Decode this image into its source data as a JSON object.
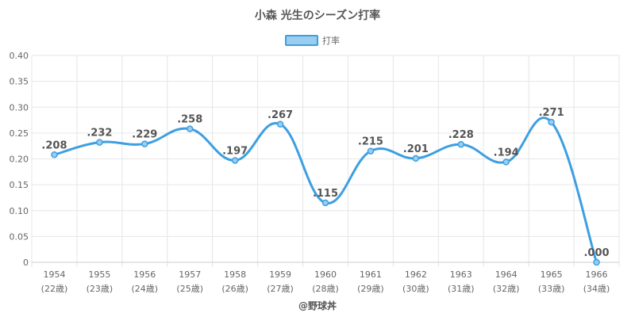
{
  "chart_data": {
    "type": "line",
    "title": "小森 光生のシーズン打率",
    "legend": {
      "label": "打率",
      "placement": "top-center"
    },
    "categories": [
      "1954",
      "1955",
      "1956",
      "1957",
      "1958",
      "1959",
      "1960",
      "1961",
      "1962",
      "1963",
      "1964",
      "1965",
      "1966"
    ],
    "age_labels": [
      "(22歳)",
      "(23歳)",
      "(24歳)",
      "(25歳)",
      "(26歳)",
      "(27歳)",
      "(28歳)",
      "(29歳)",
      "(30歳)",
      "(31歳)",
      "(32歳)",
      "(33歳)",
      "(34歳)"
    ],
    "series": [
      {
        "name": "打率",
        "values": [
          0.208,
          0.232,
          0.229,
          0.258,
          0.197,
          0.267,
          0.115,
          0.215,
          0.201,
          0.228,
          0.194,
          0.271,
          0.0
        ],
        "data_labels": [
          ".208",
          ".232",
          ".229",
          ".258",
          ".197",
          ".267",
          ".115",
          ".215",
          ".201",
          ".228",
          ".194",
          ".271",
          ".000"
        ],
        "color": "#3d9fe1",
        "fill": "#9bcdf0"
      }
    ],
    "yticks": [
      "0",
      "0.05",
      "0.10",
      "0.15",
      "0.20",
      "0.25",
      "0.30",
      "0.35",
      "0.40"
    ],
    "ylim": [
      0,
      0.4
    ],
    "grid": true
  },
  "credit": "@野球丼"
}
